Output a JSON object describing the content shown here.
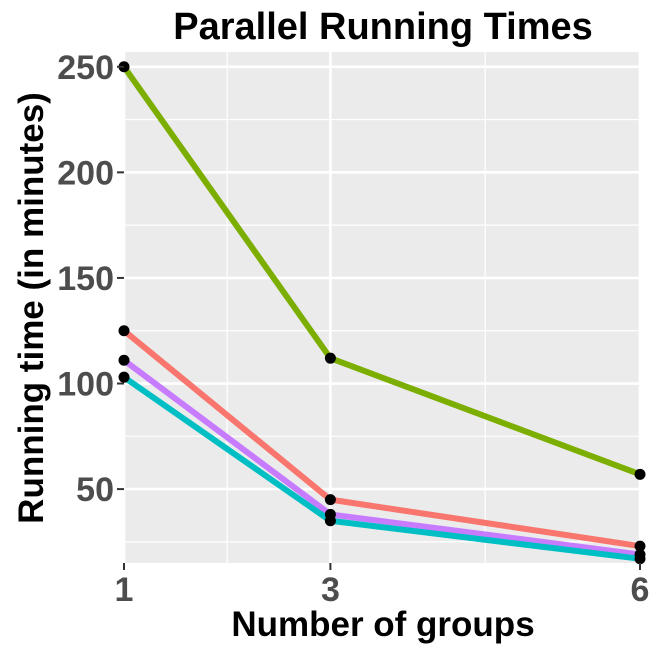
{
  "chart_data": {
    "type": "line",
    "title": "Parallel Running Times",
    "xlabel": "Number of groups",
    "ylabel": "Running time (in minutes)",
    "x": [
      1,
      3,
      6
    ],
    "x_ticks": [
      "1",
      "3",
      "6"
    ],
    "y_ticks": [
      "50",
      "100",
      "150",
      "200",
      "250"
    ],
    "xlim": [
      1,
      6
    ],
    "ylim": [
      15,
      257
    ],
    "grid": true,
    "legend": "none",
    "series": [
      {
        "color": "#7cae00",
        "values": [
          250,
          112,
          57
        ]
      },
      {
        "color": "#f8766d",
        "values": [
          125,
          45,
          23
        ]
      },
      {
        "color": "#c77cff",
        "values": [
          111,
          38,
          19
        ]
      },
      {
        "color": "#00bfc4",
        "values": [
          103,
          35,
          17
        ]
      }
    ],
    "colors": {
      "panel_background": "#ebebeb",
      "grid": "#ffffff",
      "points": "#000000"
    }
  }
}
